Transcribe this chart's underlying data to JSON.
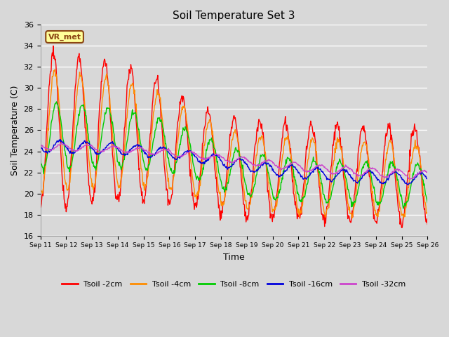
{
  "title": "Soil Temperature Set 3",
  "xlabel": "Time",
  "ylabel": "Soil Temperature (C)",
  "ylim": [
    16,
    36
  ],
  "yticks": [
    16,
    18,
    20,
    22,
    24,
    26,
    28,
    30,
    32,
    34,
    36
  ],
  "background_color": "#d8d8d8",
  "plot_bg_color": "#d8d8d8",
  "grid_color": "#ffffff",
  "annotation_text": "VR_met",
  "annotation_bg": "#ffff99",
  "annotation_border": "#8B4513",
  "series_colors": {
    "Tsoil -2cm": "#ff0000",
    "Tsoil -4cm": "#ff8c00",
    "Tsoil -8cm": "#00cc00",
    "Tsoil -16cm": "#0000dd",
    "Tsoil -32cm": "#cc44cc"
  },
  "n_days": 15,
  "start_day": 11,
  "tick_labels": [
    "Sep 11",
    "Sep 12",
    "Sep 13",
    "Sep 14",
    "Sep 15",
    "Sep 16",
    "Sep 17",
    "Sep 18",
    "Sep 19",
    "Sep 20",
    "Sep 21",
    "Sep 22",
    "Sep 23",
    "Sep 24",
    "Sep 25",
    "Sep 26"
  ],
  "points_per_day": 48
}
